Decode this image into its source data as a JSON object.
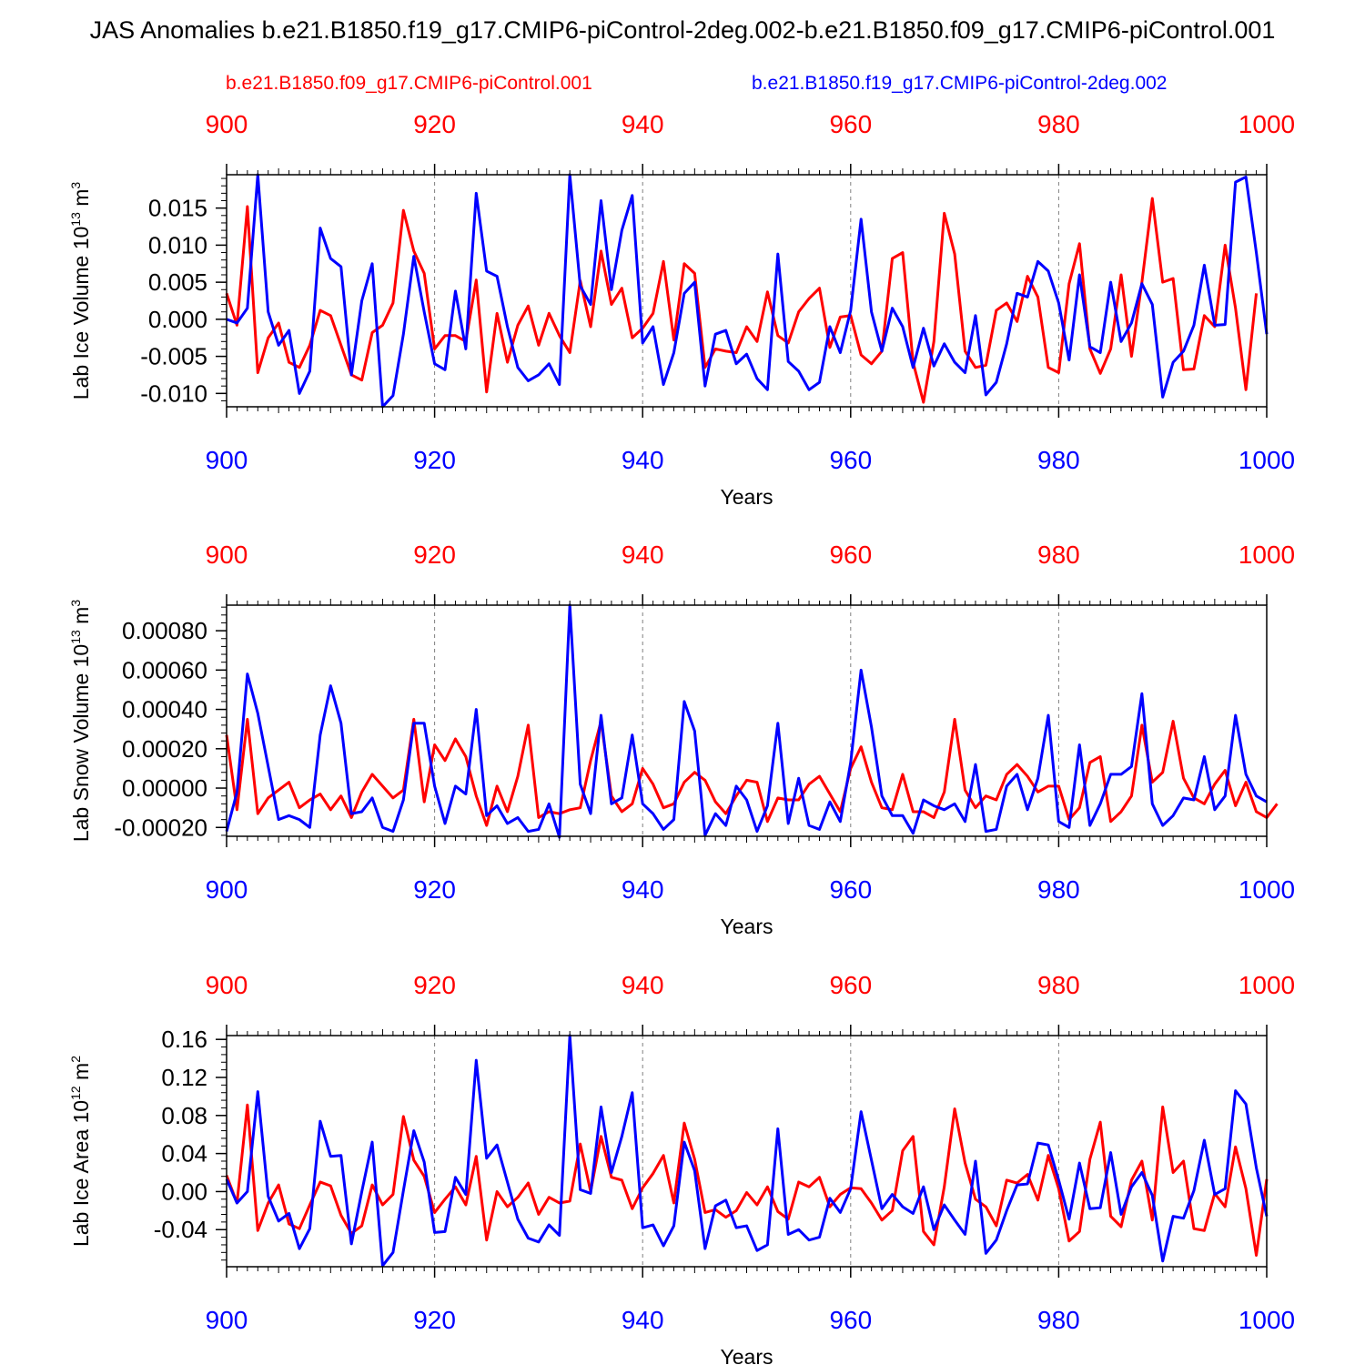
{
  "title": "JAS Anomalies b.e21.B1850.f19_g17.CMIP6-piControl-2deg.002-b.e21.B1850.f09_g17.CMIP6-piControl.001",
  "legend": {
    "red_label": "b.e21.B1850.f09_g17.CMIP6-piControl.001",
    "blue_label": "b.e21.B1850.f19_g17.CMIP6-piControl-2deg.002"
  },
  "colors": {
    "red": "#ff0000",
    "blue": "#0000ff",
    "axis": "#000000",
    "grid": "#808080"
  },
  "chart_data": [
    {
      "type": "line",
      "ylabel": "Lab Ice Volume 10",
      "ylabel_exp": "13",
      "ylabel_unit": " m",
      "ylabel_unit_exp": "3",
      "xlabel": "Years",
      "xlim": [
        900,
        1000
      ],
      "ylim": [
        -0.0118,
        0.0195
      ],
      "xticks": [
        900,
        920,
        940,
        960,
        980,
        1000
      ],
      "yticks": [
        -0.01,
        -0.005,
        0.0,
        0.005,
        0.01,
        0.015
      ],
      "ytick_labels": [
        "-0.010",
        "-0.005",
        "0.000",
        "0.005",
        "0.010",
        "0.015"
      ],
      "yminor_step": 0.001,
      "x_start": 900,
      "series": [
        {
          "name": "b.e21.B1850.f09_g17.CMIP6-piControl.001",
          "color": "red",
          "values": [
            0.0035,
            -0.0008,
            0.0152,
            -0.0072,
            -0.0025,
            -0.0005,
            -0.0058,
            -0.0065,
            -0.0035,
            0.0012,
            0.0005,
            -0.0035,
            -0.0075,
            -0.0082,
            -0.0018,
            -0.0008,
            0.0022,
            0.0147,
            0.0092,
            0.0062,
            -0.004,
            -0.0022,
            -0.0022,
            -0.003,
            0.0053,
            -0.0098,
            0.0008,
            -0.0058,
            -0.0008,
            0.0018,
            -0.0035,
            0.0008,
            -0.0022,
            -0.0045,
            0.0052,
            -0.001,
            0.0092,
            0.002,
            0.0042,
            -0.0025,
            -0.0012,
            0.0008,
            0.0078,
            -0.0028,
            0.0075,
            0.0062,
            -0.0065,
            -0.004,
            -0.0043,
            -0.0045,
            -0.001,
            -0.003,
            0.0037,
            -0.0022,
            -0.0032,
            0.001,
            0.0028,
            0.0042,
            -0.0038,
            0.0003,
            0.0005,
            -0.0048,
            -0.006,
            -0.0043,
            0.0082,
            0.009,
            -0.0058,
            -0.0112,
            -0.003,
            0.0143,
            0.0088,
            -0.0043,
            -0.0065,
            -0.0062,
            0.0012,
            0.0022,
            -0.0003,
            0.0058,
            0.003,
            -0.0065,
            -0.0072,
            0.0048,
            0.0102,
            -0.004,
            -0.0073,
            -0.004,
            0.006,
            -0.005,
            0.005,
            0.0163,
            0.005,
            0.0055,
            -0.0068,
            -0.0067,
            0.0005,
            -0.001,
            0.01,
            0.0015,
            -0.0095,
            0.0035
          ]
        },
        {
          "name": "b.e21.B1850.f19_g17.CMIP6-piControl-2deg.002",
          "color": "blue",
          "values": [
            0.0,
            -0.0005,
            0.0015,
            0.0195,
            0.001,
            -0.0035,
            -0.0015,
            -0.01,
            -0.007,
            0.0123,
            0.0082,
            0.0071,
            -0.0075,
            0.0025,
            0.0075,
            -0.0118,
            -0.0103,
            -0.002,
            0.0085,
            0.001,
            -0.006,
            -0.0068,
            0.0038,
            -0.004,
            0.017,
            0.0065,
            0.0058,
            -0.001,
            -0.0065,
            -0.0083,
            -0.0075,
            -0.006,
            -0.0088,
            0.0195,
            0.0045,
            0.002,
            0.016,
            0.004,
            0.012,
            0.0167,
            -0.0032,
            -0.001,
            -0.0088,
            -0.0045,
            0.0035,
            0.005,
            -0.009,
            -0.002,
            -0.0015,
            -0.006,
            -0.0047,
            -0.008,
            -0.0095,
            0.0088,
            -0.0057,
            -0.007,
            -0.0095,
            -0.0085,
            -0.001,
            -0.0045,
            0.0012,
            0.0135,
            0.001,
            -0.0043,
            0.0015,
            -0.001,
            -0.0065,
            -0.0012,
            -0.0063,
            -0.0033,
            -0.0058,
            -0.0072,
            0.0005,
            -0.0102,
            -0.0085,
            -0.0033,
            0.0035,
            0.003,
            0.0078,
            0.0065,
            0.0022,
            -0.0055,
            0.006,
            -0.0037,
            -0.0045,
            0.005,
            -0.003,
            -0.0005,
            0.0048,
            0.002,
            -0.0105,
            -0.0058,
            -0.0043,
            -0.0008,
            0.0073,
            -0.0008,
            -0.0007,
            0.0185,
            0.0192,
            0.009,
            -0.002
          ]
        }
      ]
    },
    {
      "type": "line",
      "ylabel": "Lab Snow Volume 10",
      "ylabel_exp": "13",
      "ylabel_unit": " m",
      "ylabel_unit_exp": "3",
      "xlabel": "Years",
      "xlim": [
        900,
        1000
      ],
      "ylim": [
        -0.000245,
        0.00093
      ],
      "xticks": [
        900,
        920,
        940,
        960,
        980,
        1000
      ],
      "yticks": [
        -0.0002,
        0.0,
        0.0002,
        0.0004,
        0.0006,
        0.0008
      ],
      "ytick_labels": [
        "-0.00020",
        "0.00000",
        "0.00020",
        "0.00040",
        "0.00060",
        "0.00080"
      ],
      "yminor_step": 4e-05,
      "x_start": 900,
      "series": [
        {
          "name": "b.e21.B1850.f09_g17.CMIP6-piControl.001",
          "color": "red",
          "values": [
            0.00027,
            -0.00011,
            0.00035,
            -0.00013,
            -5e-05,
            -1e-05,
            3e-05,
            -0.0001,
            -6e-05,
            -3e-05,
            -0.00011,
            -4e-05,
            -0.00015,
            -2e-05,
            7e-05,
            1e-05,
            -5e-05,
            -1e-05,
            0.00035,
            -7e-05,
            0.00022,
            0.00014,
            0.00025,
            0.00016,
            -4e-05,
            -0.00019,
            1e-05,
            -0.00012,
            6e-05,
            0.00032,
            -0.00015,
            -0.00012,
            -0.00013,
            -0.00011,
            -0.0001,
            0.00014,
            0.00034,
            -4e-05,
            -0.00012,
            -8e-05,
            0.0001,
            2e-05,
            -0.0001,
            -8e-05,
            3e-05,
            8e-05,
            4e-05,
            -7e-05,
            -0.00013,
            -4e-05,
            4e-05,
            3e-05,
            -0.00017,
            -5e-05,
            -6e-05,
            -6e-05,
            2e-05,
            6e-05,
            -3e-05,
            -0.00012,
            0.0001,
            0.00021,
            3e-05,
            -0.0001,
            -0.00011,
            7e-05,
            -0.00012,
            -0.00012,
            -0.00015,
            -2e-05,
            0.00035,
            -1e-05,
            -0.0001,
            -4e-05,
            -6e-05,
            7e-05,
            0.00012,
            6e-05,
            -2e-05,
            1e-05,
            1e-05,
            -0.00016,
            -0.0001,
            0.00013,
            0.00016,
            -0.00017,
            -0.00012,
            -4e-05,
            0.00032,
            3e-05,
            8e-05,
            0.00034,
            5e-05,
            -5e-05,
            -8e-05,
            2e-05,
            9e-05,
            -9e-05,
            3e-05,
            -0.00012,
            -0.00015,
            -8e-05
          ]
        },
        {
          "name": "b.e21.B1850.f19_g17.CMIP6-piControl-2deg.002",
          "color": "blue",
          "values": [
            -0.00022,
            -2e-05,
            0.00058,
            0.00038,
            0.00011,
            -0.00016,
            -0.00014,
            -0.00016,
            -0.0002,
            0.00027,
            0.00052,
            0.00033,
            -0.00013,
            -0.00012,
            -5e-05,
            -0.0002,
            -0.00022,
            -6e-05,
            0.00033,
            0.00033,
            1e-05,
            -0.00018,
            1e-05,
            -3e-05,
            0.0004,
            -0.00014,
            -9e-05,
            -0.00018,
            -0.00015,
            -0.00022,
            -0.00021,
            -8e-05,
            -0.00025,
            0.00093,
            2e-05,
            -0.00013,
            0.00037,
            -8e-05,
            -5e-05,
            0.00027,
            -8e-05,
            -0.00013,
            -0.00021,
            -0.00016,
            0.00044,
            0.00029,
            -0.00024,
            -0.00013,
            -0.00019,
            1e-05,
            -6e-05,
            -0.00022,
            -9e-05,
            0.00033,
            -0.00018,
            5e-05,
            -0.00019,
            -0.00021,
            -7e-05,
            -0.00017,
            0.00013,
            0.0006,
            0.00031,
            -4e-05,
            -0.00014,
            -0.00014,
            -0.00023,
            -6e-05,
            -9e-05,
            -0.00011,
            -8e-05,
            -0.00017,
            0.00012,
            -0.00022,
            -0.00021,
            1e-05,
            7e-05,
            -0.00011,
            5e-05,
            0.00037,
            -0.00017,
            -0.0002,
            0.00022,
            -0.00019,
            -8e-05,
            7e-05,
            7e-05,
            0.00011,
            0.00048,
            -8e-05,
            -0.00019,
            -0.00014,
            -5e-05,
            -6e-05,
            0.00016,
            -0.00011,
            -4e-05,
            0.00037,
            7e-05,
            -4e-05,
            -7e-05
          ]
        }
      ]
    },
    {
      "type": "line",
      "ylabel": "Lab Ice Area 10",
      "ylabel_exp": "12",
      "ylabel_unit": " m",
      "ylabel_unit_exp": "2",
      "xlabel": "Years",
      "xlim": [
        900,
        1000
      ],
      "ylim": [
        -0.079,
        0.164
      ],
      "xticks": [
        900,
        920,
        940,
        960,
        980,
        1000
      ],
      "yticks": [
        -0.04,
        0.0,
        0.04,
        0.08,
        0.12,
        0.16
      ],
      "ytick_labels": [
        "-0.04",
        "0.00",
        "0.04",
        "0.08",
        "0.12",
        "0.16"
      ],
      "yminor_step": 0.008,
      "x_start": 900,
      "series": [
        {
          "name": "b.e21.B1850.f09_g17.CMIP6-piControl.001",
          "color": "red",
          "values": [
            0.017,
            -0.012,
            0.091,
            -0.041,
            -0.012,
            0.007,
            -0.034,
            -0.039,
            -0.014,
            0.01,
            0.006,
            -0.025,
            -0.044,
            -0.036,
            0.007,
            -0.014,
            -0.003,
            0.079,
            0.033,
            0.016,
            -0.022,
            -0.008,
            0.005,
            -0.014,
            0.037,
            -0.051,
            0.0,
            -0.016,
            -0.006,
            0.009,
            -0.024,
            -0.006,
            -0.012,
            -0.01,
            0.05,
            0.0,
            0.058,
            0.015,
            0.012,
            -0.018,
            0.004,
            0.019,
            0.038,
            -0.012,
            0.072,
            0.034,
            -0.022,
            -0.019,
            -0.027,
            -0.02,
            -0.001,
            -0.014,
            0.005,
            -0.021,
            -0.029,
            0.01,
            0.005,
            0.015,
            -0.016,
            -0.003,
            0.004,
            0.003,
            -0.012,
            -0.03,
            -0.02,
            0.043,
            0.058,
            -0.042,
            -0.056,
            0.005,
            0.087,
            0.03,
            -0.008,
            -0.016,
            -0.036,
            0.012,
            0.009,
            0.018,
            -0.009,
            0.038,
            0.003,
            -0.052,
            -0.042,
            0.034,
            0.073,
            -0.026,
            -0.037,
            0.012,
            0.032,
            -0.03,
            0.089,
            0.02,
            0.032,
            -0.039,
            -0.041,
            -0.002,
            -0.016,
            0.047,
            0.003,
            -0.067,
            0.013
          ]
        },
        {
          "name": "b.e21.B1850.f19_g17.CMIP6-piControl-2deg.002",
          "color": "blue",
          "values": [
            0.013,
            -0.012,
            0.0,
            0.105,
            -0.005,
            -0.031,
            -0.023,
            -0.06,
            -0.039,
            0.074,
            0.037,
            0.038,
            -0.055,
            0.0,
            0.052,
            -0.078,
            -0.064,
            0.001,
            0.064,
            0.031,
            -0.043,
            -0.042,
            0.015,
            -0.003,
            0.138,
            0.035,
            0.049,
            0.01,
            -0.029,
            -0.049,
            -0.053,
            -0.035,
            -0.046,
            0.164,
            0.002,
            -0.002,
            0.089,
            0.02,
            0.058,
            0.104,
            -0.038,
            -0.035,
            -0.057,
            -0.036,
            0.052,
            0.022,
            -0.06,
            -0.015,
            -0.009,
            -0.038,
            -0.036,
            -0.062,
            -0.056,
            0.066,
            -0.045,
            -0.04,
            -0.051,
            -0.048,
            -0.007,
            -0.022,
            0.003,
            0.084,
            0.033,
            -0.018,
            -0.003,
            -0.016,
            -0.023,
            0.005,
            -0.04,
            -0.014,
            -0.03,
            -0.045,
            0.032,
            -0.065,
            -0.051,
            -0.02,
            0.007,
            0.008,
            0.051,
            0.049,
            0.012,
            -0.029,
            0.03,
            -0.018,
            -0.017,
            0.041,
            -0.024,
            0.005,
            0.02,
            -0.004,
            -0.073,
            -0.026,
            -0.028,
            0.001,
            0.054,
            -0.003,
            0.003,
            0.106,
            0.092,
            0.025,
            -0.026
          ]
        }
      ]
    }
  ]
}
